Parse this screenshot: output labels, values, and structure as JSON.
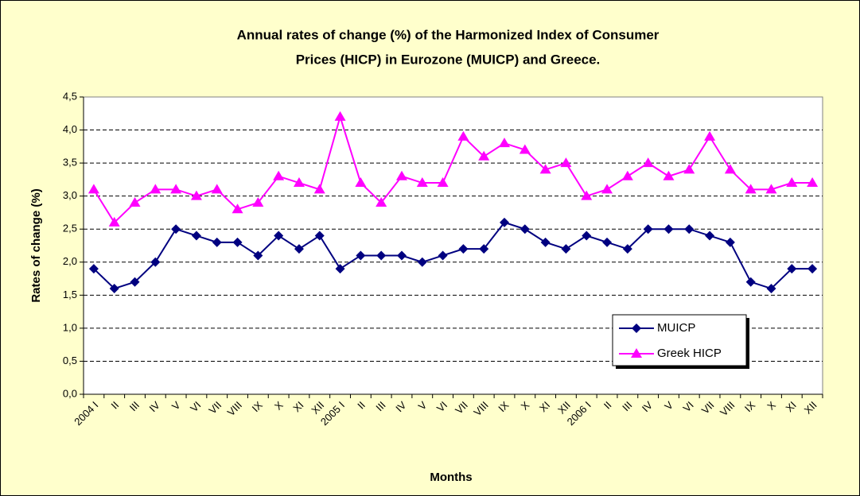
{
  "chart_data": {
    "type": "line",
    "title": [
      "Annual rates of change (%) of the Harmonized Index of Consumer",
      "Prices (HICP) in Eurozone (MUICP) and Greece."
    ],
    "x_label": "Months",
    "y_label": "Rates of change (%)",
    "categories": [
      "2004 I",
      "II",
      "III",
      "IV",
      "V",
      "VI",
      "VII",
      "VIII",
      "IX",
      "X",
      "XI",
      "XII",
      "2005 I",
      "II",
      "III",
      "IV",
      "V",
      "VI",
      "VII",
      "VIII",
      "IX",
      "X",
      "XI",
      "XII",
      "2006 I",
      "II",
      "III",
      "IV",
      "V",
      "VI",
      "VII",
      "VIII",
      "IX",
      "X",
      "XI",
      "XII"
    ],
    "series": [
      {
        "name": "MUICP",
        "color": "#000080",
        "marker": "diamond",
        "values": [
          1.9,
          1.6,
          1.7,
          2.0,
          2.5,
          2.4,
          2.3,
          2.3,
          2.1,
          2.4,
          2.2,
          2.4,
          1.9,
          2.1,
          2.1,
          2.1,
          2.0,
          2.1,
          2.2,
          2.2,
          2.6,
          2.5,
          2.3,
          2.2,
          2.4,
          2.3,
          2.2,
          2.5,
          2.5,
          2.5,
          2.4,
          2.3,
          1.7,
          1.6,
          1.9,
          1.9
        ]
      },
      {
        "name": "Greek HICP",
        "color": "#FF00FF",
        "marker": "triangle",
        "values": [
          3.1,
          2.6,
          2.9,
          3.1,
          3.1,
          3.0,
          3.1,
          2.8,
          2.9,
          3.3,
          3.2,
          3.1,
          4.2,
          3.2,
          2.9,
          3.3,
          3.2,
          3.2,
          3.9,
          3.6,
          3.8,
          3.7,
          3.4,
          3.5,
          3.0,
          3.1,
          3.3,
          3.5,
          3.3,
          3.4,
          3.9,
          3.4,
          3.1,
          3.1,
          3.2,
          3.2
        ]
      }
    ],
    "ylim": [
      0,
      4.5
    ],
    "yticks": [
      {
        "value": 0,
        "label": "0,0"
      },
      {
        "value": 0.5,
        "label": "0,5"
      },
      {
        "value": 1,
        "label": "1,0"
      },
      {
        "value": 1.5,
        "label": "1,5"
      },
      {
        "value": 2,
        "label": "2,0"
      },
      {
        "value": 2.5,
        "label": "2,5"
      },
      {
        "value": 3,
        "label": "3,0"
      },
      {
        "value": 3.5,
        "label": "3,5"
      },
      {
        "value": 4,
        "label": "4,0"
      },
      {
        "value": 4.5,
        "label": "4,5"
      }
    ],
    "grid": true,
    "legend": "lower right"
  }
}
